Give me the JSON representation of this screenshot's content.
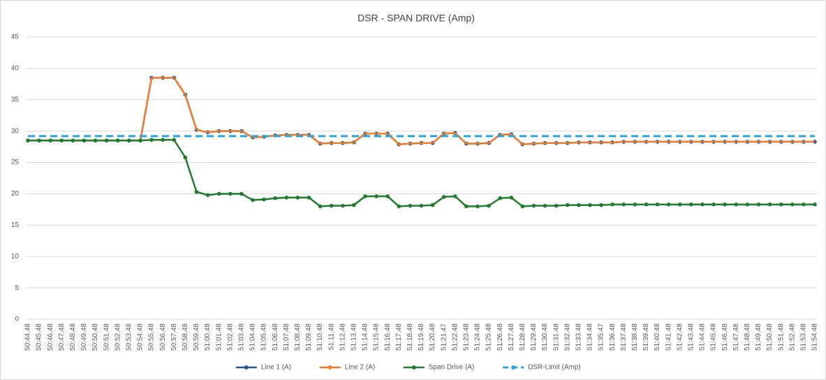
{
  "chart_data": {
    "type": "line",
    "title": "DSR - SPAN DRIVE (Amp)",
    "categories": [
      "50:44.48",
      "50:45.48",
      "50:46.48",
      "50:47.48",
      "50:48.48",
      "50:49.48",
      "50:50.48",
      "50:51.48",
      "50:52.48",
      "50:53.48",
      "50:54.48",
      "50:55.48",
      "50:56.48",
      "50:57.48",
      "50:58.48",
      "50:59.48",
      "51:00.48",
      "51:01.48",
      "51:02.48",
      "51:03.48",
      "51:04.48",
      "51:05.48",
      "51:06.48",
      "51:07.48",
      "51:08.48",
      "51:09.48",
      "51:10.48",
      "51:11.48",
      "51:12.48",
      "51:13.48",
      "51:14.48",
      "51:15.48",
      "51:16.48",
      "51:17.48",
      "51:18.48",
      "51:19.48",
      "51:20.48",
      "51:21.47",
      "51:22.48",
      "51:23.48",
      "51:24.48",
      "51:25.48",
      "51:26.48",
      "51:27.48",
      "51:28.48",
      "51:29.48",
      "51:30.48",
      "51:31.48",
      "51:32.48",
      "51:33.48",
      "51:34.48",
      "51:35.47",
      "51:36.48",
      "51:37.48",
      "51:38.48",
      "51:39.48",
      "51:40.48",
      "51:41.48",
      "51:42.48",
      "51:43.48",
      "51:44.48",
      "51:45.48",
      "51:46.48",
      "51:47.48",
      "51:48.48",
      "51:49.48",
      "51:50.48",
      "51:51.48",
      "51:52.48",
      "51:53.48",
      "51:54.48"
    ],
    "series": [
      {
        "name": "Line 1 (A)",
        "color": "#24598a",
        "marker": true,
        "dashed": false,
        "values": [
          28.5,
          28.5,
          28.5,
          28.5,
          28.5,
          28.5,
          28.5,
          28.5,
          28.5,
          28.5,
          28.5,
          38.5,
          38.5,
          38.5,
          35.8,
          30.2,
          29.8,
          30.0,
          30.0,
          30.0,
          29.0,
          29.1,
          29.3,
          29.4,
          29.4,
          29.4,
          28.0,
          28.1,
          28.1,
          28.2,
          29.6,
          29.6,
          29.6,
          27.9,
          28.0,
          28.1,
          28.1,
          29.6,
          29.7,
          28.0,
          28.0,
          28.1,
          29.4,
          29.5,
          27.9,
          28.0,
          28.1,
          28.1,
          28.1,
          28.2,
          28.2,
          28.2,
          28.2,
          28.3,
          28.3,
          28.3,
          28.3,
          28.3,
          28.3,
          28.3,
          28.3,
          28.3,
          28.3,
          28.3,
          28.3,
          28.3,
          28.3,
          28.3,
          28.3,
          28.3,
          28.3
        ]
      },
      {
        "name": "Line 2 (A)",
        "color": "#ed7d31",
        "marker": false,
        "dashed": false,
        "values": [
          28.5,
          28.5,
          28.5,
          28.5,
          28.5,
          28.5,
          28.5,
          28.5,
          28.5,
          28.5,
          28.5,
          38.5,
          38.5,
          38.5,
          35.8,
          30.2,
          29.8,
          30.0,
          30.0,
          30.0,
          29.0,
          29.1,
          29.3,
          29.4,
          29.4,
          29.4,
          28.0,
          28.1,
          28.1,
          28.2,
          29.6,
          29.6,
          29.6,
          27.9,
          28.0,
          28.1,
          28.1,
          29.6,
          29.7,
          28.0,
          28.0,
          28.1,
          29.4,
          29.5,
          27.9,
          28.0,
          28.1,
          28.1,
          28.1,
          28.2,
          28.2,
          28.2,
          28.2,
          28.3,
          28.3,
          28.3,
          28.3,
          28.3,
          28.3,
          28.3,
          28.3,
          28.3,
          28.3,
          28.3,
          28.3,
          28.3,
          28.3,
          28.3,
          28.3,
          28.3,
          28.3
        ]
      },
      {
        "name": "Span Drive (A)",
        "color": "#237a2f",
        "marker": true,
        "dashed": false,
        "values": [
          28.5,
          28.5,
          28.5,
          28.5,
          28.5,
          28.5,
          28.5,
          28.5,
          28.5,
          28.5,
          28.5,
          28.6,
          28.6,
          28.6,
          25.8,
          20.3,
          19.8,
          20.0,
          20.0,
          20.0,
          19.0,
          19.1,
          19.3,
          19.4,
          19.4,
          19.4,
          18.0,
          18.1,
          18.1,
          18.2,
          19.6,
          19.6,
          19.6,
          18.0,
          18.1,
          18.1,
          18.2,
          19.5,
          19.6,
          18.0,
          18.0,
          18.1,
          19.3,
          19.4,
          18.0,
          18.1,
          18.1,
          18.1,
          18.2,
          18.2,
          18.2,
          18.2,
          18.3,
          18.3,
          18.3,
          18.3,
          18.3,
          18.3,
          18.3,
          18.3,
          18.3,
          18.3,
          18.3,
          18.3,
          18.3,
          18.3,
          18.3,
          18.3,
          18.3,
          18.3,
          18.3
        ]
      },
      {
        "name": "DSR-Limit (Amp)",
        "color": "#2ba3d8",
        "marker": false,
        "dashed": true,
        "values": [
          29.2,
          29.2,
          29.2,
          29.2,
          29.2,
          29.2,
          29.2,
          29.2,
          29.2,
          29.2,
          29.2,
          29.2,
          29.2,
          29.2,
          29.2,
          29.2,
          29.2,
          29.2,
          29.2,
          29.2,
          29.2,
          29.2,
          29.2,
          29.2,
          29.2,
          29.2,
          29.2,
          29.2,
          29.2,
          29.2,
          29.2,
          29.2,
          29.2,
          29.2,
          29.2,
          29.2,
          29.2,
          29.2,
          29.2,
          29.2,
          29.2,
          29.2,
          29.2,
          29.2,
          29.2,
          29.2,
          29.2,
          29.2,
          29.2,
          29.2,
          29.2,
          29.2,
          29.2,
          29.2,
          29.2,
          29.2,
          29.2,
          29.2,
          29.2,
          29.2,
          29.2,
          29.2,
          29.2,
          29.2,
          29.2,
          29.2,
          29.2,
          29.2,
          29.2,
          29.2,
          29.2
        ]
      }
    ],
    "ylim": [
      0,
      45
    ],
    "yticks": [
      0,
      5,
      10,
      15,
      20,
      25,
      30,
      35,
      40,
      45
    ],
    "grid": true,
    "legend": "bottom"
  }
}
